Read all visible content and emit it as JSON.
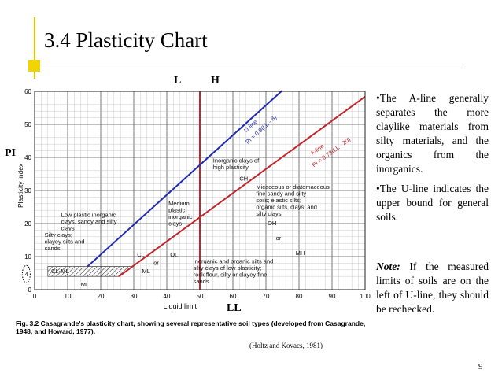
{
  "slide": {
    "title": "3.4 Plasticity Chart",
    "page_number": "9",
    "labels": {
      "L": "L",
      "H": "H",
      "PI": "PI",
      "LL": "LL"
    },
    "bullets": [
      "•The A-line generally separates the more claylike materials from silty materials, and the organics from the inorganics.",
      "•The U-line indicates the upper bound for general soils."
    ],
    "note_label": "Note:",
    "note_text": " If the measured limits of soils are on the left of U-line, they should be rechecked.",
    "source": "(Holtz and Kovacs, 1981)",
    "caption_bold": "Fig. 3.2",
    "caption_text": " Casagrande's plasticity chart, showing several representative soil types (developed from Casagrande, 1948, and Howard, 1977)."
  },
  "chart_data": {
    "type": "line",
    "xlabel": "Liquid limit",
    "ylabel": "Plasticity index",
    "xlim": [
      0,
      100
    ],
    "ylim": [
      0,
      60
    ],
    "x_ticks": [
      0,
      10,
      20,
      30,
      40,
      50,
      60,
      70,
      80,
      90,
      100
    ],
    "y_ticks": [
      0,
      10,
      20,
      30,
      40,
      50,
      60
    ],
    "grid": true,
    "series": [
      {
        "name": "U-line",
        "label": "U-line",
        "equation": "PI = 0.9(LL - 8)",
        "x": [
          16,
          75
        ],
        "y": [
          7,
          60.3
        ],
        "color": "#1f2bb0"
      },
      {
        "name": "A-line",
        "label": "A-line",
        "equation": "PI = 0.73(LL - 20)",
        "x": [
          25.5,
          100
        ],
        "y": [
          4,
          58.4
        ],
        "color": "#c0262b"
      }
    ],
    "reference_lines": [
      {
        "type": "vertical",
        "x": 50,
        "color": "#c0262b"
      }
    ],
    "annotations": [
      {
        "text": "Inorganic clays of high plasticity",
        "x": 54,
        "y": 38.5
      },
      {
        "text": "CH",
        "x": 62,
        "y": 33
      },
      {
        "text": "Medium plastic inorganic clays",
        "x": 40.5,
        "y": 25.5
      },
      {
        "text": "Low plastic inorganic clays, sandy and silty clays",
        "x": 8,
        "y": 22
      },
      {
        "text": "Micaceous or diatomaceous fine sandy and silty soils; elastic silts; organic silts, clays, and silty clays",
        "x": 67,
        "y": 30.5
      },
      {
        "text": "OH",
        "x": 70.5,
        "y": 19.5
      },
      {
        "text": "or",
        "x": 73,
        "y": 15
      },
      {
        "text": "MH",
        "x": 79,
        "y": 10.5
      },
      {
        "text": "Silty clays; clayey silts and sands",
        "x": 3,
        "y": 16
      },
      {
        "text": "CL",
        "x": 31,
        "y": 10
      },
      {
        "text": "OL",
        "x": 41,
        "y": 10
      },
      {
        "text": "or",
        "x": 36,
        "y": 7.5
      },
      {
        "text": "ML",
        "x": 32.5,
        "y": 5
      },
      {
        "text": "CL-ML",
        "x": 5,
        "y": 5
      },
      {
        "text": "ML",
        "x": 14,
        "y": 1
      },
      {
        "text": "Inorganic and organic silts and silty clays of low plasticity; rock flour, silty or clayey fine sands",
        "x": 48,
        "y": 8
      },
      {
        "text": "4",
        "x": -3,
        "y": 4
      }
    ]
  }
}
